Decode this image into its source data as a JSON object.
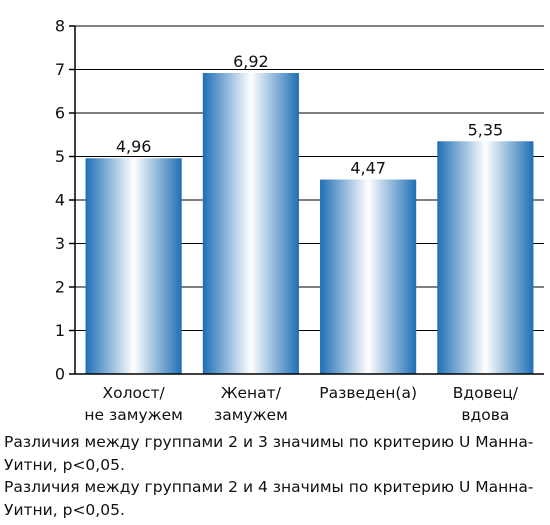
{
  "chart_data": {
    "type": "bar",
    "categories": [
      [
        "Холост/",
        "не замужем"
      ],
      [
        "Женат/",
        "замужем"
      ],
      [
        "Разведен(а)"
      ],
      [
        "Вдовец/",
        "вдова"
      ]
    ],
    "values": [
      4.96,
      6.92,
      4.47,
      5.35
    ],
    "value_labels": [
      "4,96",
      "6,92",
      "4,47",
      "5,35"
    ],
    "ylim": [
      0,
      8
    ],
    "yticks": [
      0,
      1,
      2,
      3,
      4,
      5,
      6,
      7,
      8
    ],
    "title": "",
    "xlabel": "",
    "ylabel": "",
    "grid": true,
    "legend": "none",
    "colors": {
      "bar_edge": "#1f6fb5",
      "bar_light": "#ffffff",
      "grid": "#000000",
      "axis": "#000000"
    }
  },
  "notes": [
    "Различия между группами 2 и 3 значимы по критерию U Манна-Уитни, p<0,05.",
    "Различия между группами 2 и 4 значимы по критерию U Манна-Уитни, p<0,05."
  ]
}
